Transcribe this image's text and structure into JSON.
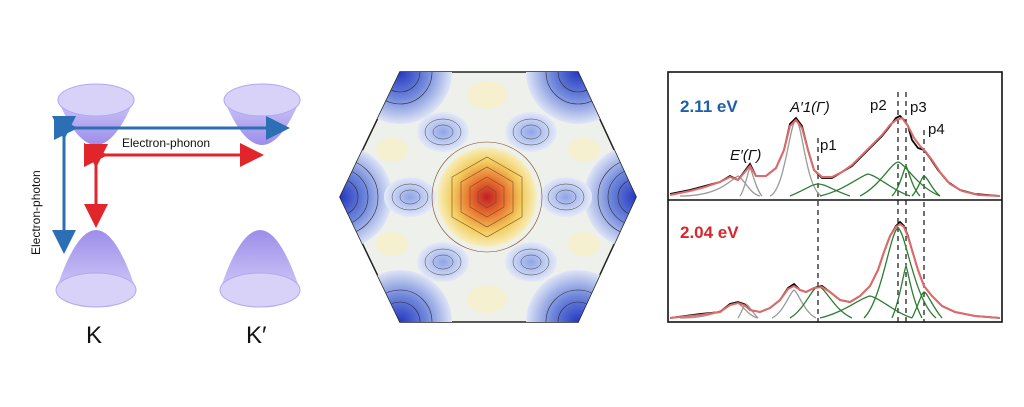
{
  "panel_a": {
    "arrow_horizontal_label": "Electron-phonon",
    "arrow_vertical_label": "Electron-photon",
    "valley_left_label": "K",
    "valley_right_label": "K′",
    "colors": {
      "cone": "#a99cf0",
      "blue_arrow": "#2c6fb5",
      "red_arrow": "#e0262b"
    }
  },
  "panel_b": {
    "description_icon": "hexagonal-contour-map",
    "colors": {
      "center_high": "#c8202a",
      "mid": "#f2d070",
      "low": "#3050c8",
      "background": "#eef0ec"
    }
  },
  "panel_c": {
    "top_energy_label": "2.11 eV",
    "bottom_energy_label": "2.04 eV",
    "peak_labels": {
      "E_prime": "E′(Γ)",
      "A1_prime": "A′1(Γ)",
      "p1": "p1",
      "p2": "p2",
      "p3": "p3",
      "p4": "p4"
    },
    "colors": {
      "top_label": "#1f5fa8",
      "bottom_label": "#d9262c",
      "fit_total": "#e06a6a",
      "components_green": "#2e7d32",
      "components_gray": "#9a9a9a",
      "data": "#000000"
    }
  }
}
